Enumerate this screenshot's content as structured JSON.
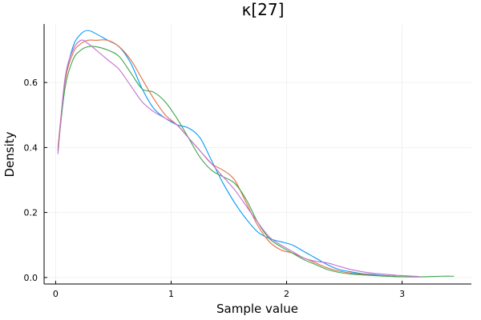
{
  "chart_data": {
    "type": "line",
    "title": "κ[27]",
    "xlabel": "Sample value",
    "ylabel": "Density",
    "xlim": [
      -0.1,
      3.6
    ],
    "ylim": [
      -0.02,
      0.78
    ],
    "xticks": [
      0,
      1,
      2,
      3
    ],
    "yticks": [
      0.0,
      0.2,
      0.4,
      0.6
    ],
    "xtick_labels": [
      "0",
      "1",
      "2",
      "3"
    ],
    "ytick_labels": [
      "0.0",
      "0.2",
      "0.4",
      "0.6"
    ],
    "grid": true,
    "legend": "none",
    "series": [
      {
        "color": "#009AFA",
        "x": [
          0.02,
          0.08,
          0.15,
          0.22,
          0.28,
          0.35,
          0.45,
          0.55,
          0.65,
          0.75,
          0.85,
          0.95,
          1.05,
          1.15,
          1.25,
          1.35,
          1.45,
          1.55,
          1.65,
          1.75,
          1.85,
          1.95,
          2.05,
          2.15,
          2.25,
          2.35,
          2.45,
          2.55,
          2.65,
          2.75,
          2.85,
          2.95
        ],
        "y": [
          0.39,
          0.6,
          0.71,
          0.75,
          0.76,
          0.75,
          0.73,
          0.71,
          0.66,
          0.58,
          0.52,
          0.49,
          0.47,
          0.46,
          0.43,
          0.36,
          0.29,
          0.23,
          0.18,
          0.14,
          0.12,
          0.11,
          0.1,
          0.08,
          0.06,
          0.04,
          0.025,
          0.018,
          0.012,
          0.009,
          0.006,
          0.004
        ]
      },
      {
        "color": "#E36F47",
        "x": [
          0.02,
          0.08,
          0.15,
          0.22,
          0.28,
          0.35,
          0.45,
          0.55,
          0.65,
          0.75,
          0.85,
          0.95,
          1.05,
          1.15,
          1.25,
          1.35,
          1.45,
          1.55,
          1.65,
          1.75,
          1.85,
          1.95,
          2.05,
          2.15,
          2.25,
          2.35,
          2.45,
          2.55,
          2.65,
          2.75,
          2.85,
          2.95,
          3.05
        ],
        "y": [
          0.4,
          0.6,
          0.69,
          0.72,
          0.73,
          0.73,
          0.73,
          0.71,
          0.67,
          0.61,
          0.55,
          0.5,
          0.47,
          0.43,
          0.39,
          0.35,
          0.33,
          0.3,
          0.23,
          0.16,
          0.11,
          0.085,
          0.075,
          0.06,
          0.045,
          0.03,
          0.02,
          0.014,
          0.01,
          0.007,
          0.005,
          0.003,
          0.002
        ]
      },
      {
        "color": "#3EA44E",
        "x": [
          0.02,
          0.08,
          0.15,
          0.22,
          0.28,
          0.35,
          0.45,
          0.55,
          0.65,
          0.75,
          0.85,
          0.95,
          1.05,
          1.15,
          1.25,
          1.35,
          1.45,
          1.55,
          1.65,
          1.75,
          1.85,
          1.95,
          2.05,
          2.15,
          2.25,
          2.35,
          2.45,
          2.55,
          2.65,
          2.75,
          2.85,
          2.95,
          3.05,
          3.15,
          3.25,
          3.35,
          3.45
        ],
        "y": [
          0.39,
          0.58,
          0.67,
          0.7,
          0.71,
          0.71,
          0.7,
          0.68,
          0.63,
          0.58,
          0.57,
          0.54,
          0.49,
          0.43,
          0.37,
          0.33,
          0.31,
          0.29,
          0.24,
          0.17,
          0.12,
          0.095,
          0.075,
          0.055,
          0.04,
          0.025,
          0.016,
          0.011,
          0.008,
          0.006,
          0.004,
          0.003,
          0.002,
          0.002,
          0.003,
          0.004,
          0.004
        ]
      },
      {
        "color": "#C271D2",
        "x": [
          0.02,
          0.08,
          0.15,
          0.22,
          0.28,
          0.35,
          0.45,
          0.55,
          0.65,
          0.75,
          0.85,
          0.95,
          1.05,
          1.15,
          1.25,
          1.35,
          1.45,
          1.55,
          1.65,
          1.75,
          1.85,
          1.95,
          2.05,
          2.15,
          2.25,
          2.35,
          2.45,
          2.55,
          2.65,
          2.75,
          2.85,
          2.95,
          3.05,
          3.15
        ],
        "y": [
          0.38,
          0.61,
          0.7,
          0.73,
          0.72,
          0.7,
          0.67,
          0.64,
          0.59,
          0.54,
          0.51,
          0.49,
          0.47,
          0.43,
          0.39,
          0.35,
          0.31,
          0.27,
          0.22,
          0.17,
          0.125,
          0.1,
          0.08,
          0.06,
          0.05,
          0.045,
          0.035,
          0.025,
          0.018,
          0.013,
          0.01,
          0.007,
          0.005,
          0.003
        ]
      }
    ]
  }
}
